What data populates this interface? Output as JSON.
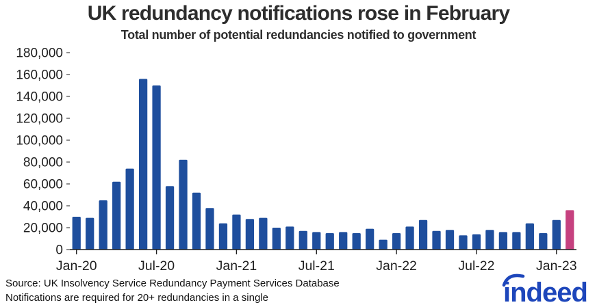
{
  "header": {
    "title": "UK redundancy notifications rose in February",
    "subtitle": "Total number of potential redundancies notified to government"
  },
  "chart_data": {
    "type": "bar",
    "title": "UK redundancy notifications rose in February",
    "subtitle": "Total number of potential redundancies notified to government",
    "x": [
      "Jan-20",
      "Feb-20",
      "Mar-20",
      "Apr-20",
      "May-20",
      "Jun-20",
      "Jul-20",
      "Aug-20",
      "Sep-20",
      "Oct-20",
      "Nov-20",
      "Dec-20",
      "Jan-21",
      "Feb-21",
      "Mar-21",
      "Apr-21",
      "May-21",
      "Jun-21",
      "Jul-21",
      "Aug-21",
      "Sep-21",
      "Oct-21",
      "Nov-21",
      "Dec-21",
      "Jan-22",
      "Feb-22",
      "Mar-22",
      "Apr-22",
      "May-22",
      "Jun-22",
      "Jul-22",
      "Aug-22",
      "Sep-22",
      "Oct-22",
      "Nov-22",
      "Dec-22",
      "Jan-23",
      "Feb-23"
    ],
    "values": [
      30000,
      29000,
      45000,
      62000,
      74000,
      156000,
      150000,
      58000,
      82000,
      52000,
      38000,
      24000,
      32000,
      28000,
      29000,
      20000,
      21000,
      17000,
      16000,
      15000,
      16000,
      15000,
      19000,
      9000,
      15000,
      21000,
      27000,
      17000,
      18000,
      13000,
      14000,
      18000,
      16000,
      16000,
      24000,
      15000,
      27000,
      36000
    ],
    "xtick_labels": [
      "Jan-20",
      "Jul-20",
      "Jan-21",
      "Jul-21",
      "Jan-22",
      "Jul-22",
      "Jan-23"
    ],
    "ytick_labels": [
      "0",
      "20,000",
      "40,000",
      "60,000",
      "80,000",
      "100,000",
      "120,000",
      "140,000",
      "160,000",
      "180,000"
    ],
    "ylim": [
      0,
      180000
    ],
    "ytick_step": 20000,
    "grid": false,
    "legend": "none",
    "bar_color": "#1e4e9d",
    "highlight_color": "#c6417f",
    "highlight_index": 37,
    "highlight_label": "Feb-23",
    "axis_color": "#1f1f1f"
  },
  "footer": {
    "source_line1": "Source: UK Insolvency Service Redundancy Payment Services Database",
    "source_line2": "Notifications are required for 20+ redundancies in a single",
    "logo_text": "indeed",
    "logo_color": "#1d46bb"
  }
}
